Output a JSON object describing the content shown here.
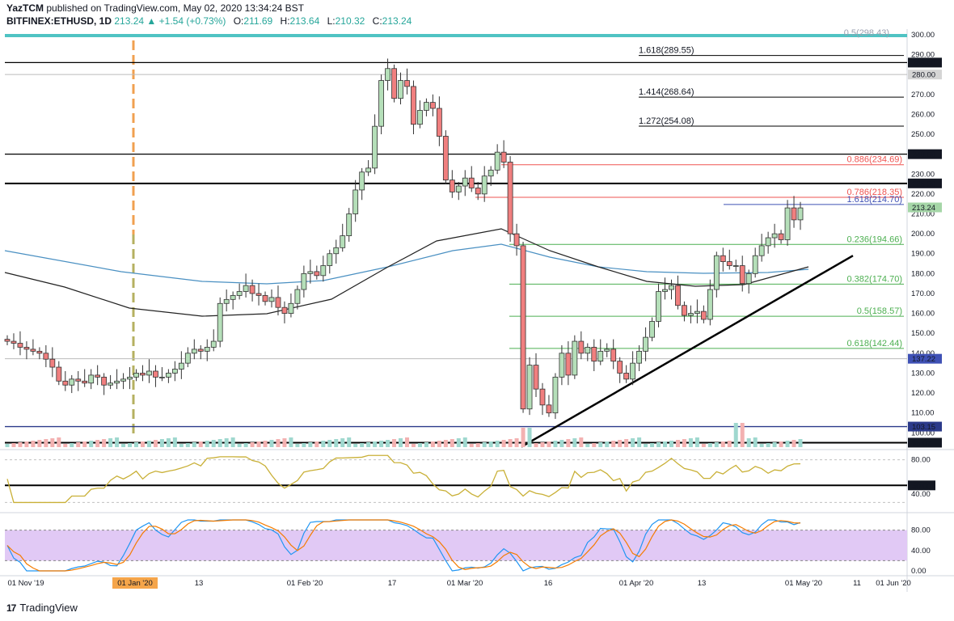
{
  "header": {
    "author": "YazTCM",
    "published_text": "published on TradingView.com, May 02, 2020 13:34:24 BST"
  },
  "legend": {
    "symbol": "BITFINEX:ETHUSD, 1D",
    "last": "213.24",
    "change": "+1.54 (+0.73%)",
    "o_label": "O:",
    "o": "211.69",
    "h_label": "H:",
    "h": "213.64",
    "l_label": "L:",
    "l": "210.32",
    "c_label": "C:",
    "c": "213.24"
  },
  "footer": {
    "brand": "TradingView",
    "logo_text": "17"
  },
  "colors": {
    "up": "#26a69a",
    "up_fill": "#a5d6a7",
    "down": "#ef5350",
    "candle_up_body": "#b5dfb9",
    "candle_down_body": "#f07f7f",
    "fib_red": "#ef5350",
    "fib_green": "#4caf50",
    "fib_blue": "#3f51b5",
    "rsi": "#c9b037",
    "stoch_k": "#2196f3",
    "stoch_d": "#f57c00",
    "ma200": "#4a90c2",
    "ma100": "#222222",
    "stoch_band": "#e1c9f5"
  },
  "chart_data": {
    "type": "candlestick",
    "price_axis_ticks": [
      "300.00",
      "290.00",
      "280.00",
      "270.00",
      "260.00",
      "250.00",
      "240.00",
      "230.00",
      "220.00",
      "210.00",
      "200.00",
      "190.00",
      "180.00",
      "170.00",
      "160.00",
      "150.00",
      "140.00",
      "130.00",
      "120.00",
      "110.00",
      "100.00"
    ],
    "price_range": [
      92,
      302
    ],
    "price_markers": [
      {
        "label": "286.00",
        "price": 286.0,
        "style": "black"
      },
      {
        "label": "280.00",
        "price": 280.0,
        "style": "grey"
      },
      {
        "label": "240.00",
        "price": 240.0,
        "style": "black"
      },
      {
        "label": "225.30",
        "price": 225.3,
        "style": "black"
      },
      {
        "label": "213.24",
        "price": 213.24,
        "style": "green"
      },
      {
        "label": "137.22",
        "price": 137.22,
        "style": "blue"
      },
      {
        "label": "103.15",
        "price": 103.15,
        "style": "navy"
      },
      {
        "label": "95.07",
        "price": 95.07,
        "style": "black"
      }
    ],
    "horizontal_levels": [
      286.0,
      240.0,
      225.3,
      103.15,
      95.07
    ],
    "fib_extension": [
      {
        "label": "1.618(289.55)",
        "price": 289.55
      },
      {
        "label": "1.414(268.64)",
        "price": 268.64
      },
      {
        "label": "1.272(254.08)",
        "price": 254.08
      }
    ],
    "fib_retracement": [
      {
        "label": "0.886(234.69)",
        "price": 234.69,
        "color": "red"
      },
      {
        "label": "0.786(218.35)",
        "price": 218.35,
        "color": "red"
      },
      {
        "label": "1.618(214.70)",
        "price": 214.7,
        "color": "blue"
      },
      {
        "label": "0.236(194.66)",
        "price": 194.66,
        "color": "green"
      },
      {
        "label": "0.382(174.70)",
        "price": 174.7,
        "color": "green"
      },
      {
        "label": "0.5(158.57)",
        "price": 158.57,
        "color": "green"
      },
      {
        "label": "0.618(142.44)",
        "price": 142.44,
        "color": "green"
      }
    ],
    "top_fib_partial": "0.5(298.43)",
    "trendline": {
      "from_price": 93.0,
      "to_price": 189.0
    },
    "close_series": [
      146,
      145,
      143,
      142,
      141,
      140,
      137,
      133,
      126,
      124,
      127,
      126,
      125,
      129,
      128,
      124,
      125,
      126,
      127,
      128,
      130,
      129,
      131,
      128,
      128,
      130,
      132,
      135,
      140,
      142,
      141,
      143,
      146,
      165,
      167,
      169,
      171,
      174,
      170,
      169,
      166,
      168,
      163,
      160,
      165,
      172,
      180,
      181,
      179,
      184,
      190,
      193,
      199,
      210,
      222,
      231,
      233,
      254,
      277,
      283,
      268,
      277,
      274,
      255,
      262,
      266,
      263,
      249,
      227,
      221,
      224,
      228,
      223,
      220,
      229,
      232,
      241,
      236,
      200,
      194,
      112,
      134,
      122,
      114,
      110,
      128,
      140,
      129,
      146,
      140,
      143,
      136,
      141,
      142,
      136,
      130,
      127,
      135,
      141,
      148,
      156,
      171,
      172,
      174,
      164,
      159,
      160,
      161,
      157,
      172,
      189,
      186,
      184,
      184,
      175,
      180,
      189,
      194,
      198,
      200,
      197,
      213,
      207,
      213
    ],
    "x_axis_labels": [
      "01 Nov '19",
      "01 Jan '20",
      "13",
      "01 Feb '20",
      "17",
      "01 Mar '20",
      "16",
      "01 Apr '20",
      "13",
      "01 May '20",
      "11",
      "01 Jun '20"
    ],
    "rsi_axis": [
      "80.00",
      "50.00",
      "40.00"
    ],
    "rsi_marker": "50.00",
    "stoch_axis": [
      "80.00",
      "40.00",
      "0.00"
    ]
  }
}
